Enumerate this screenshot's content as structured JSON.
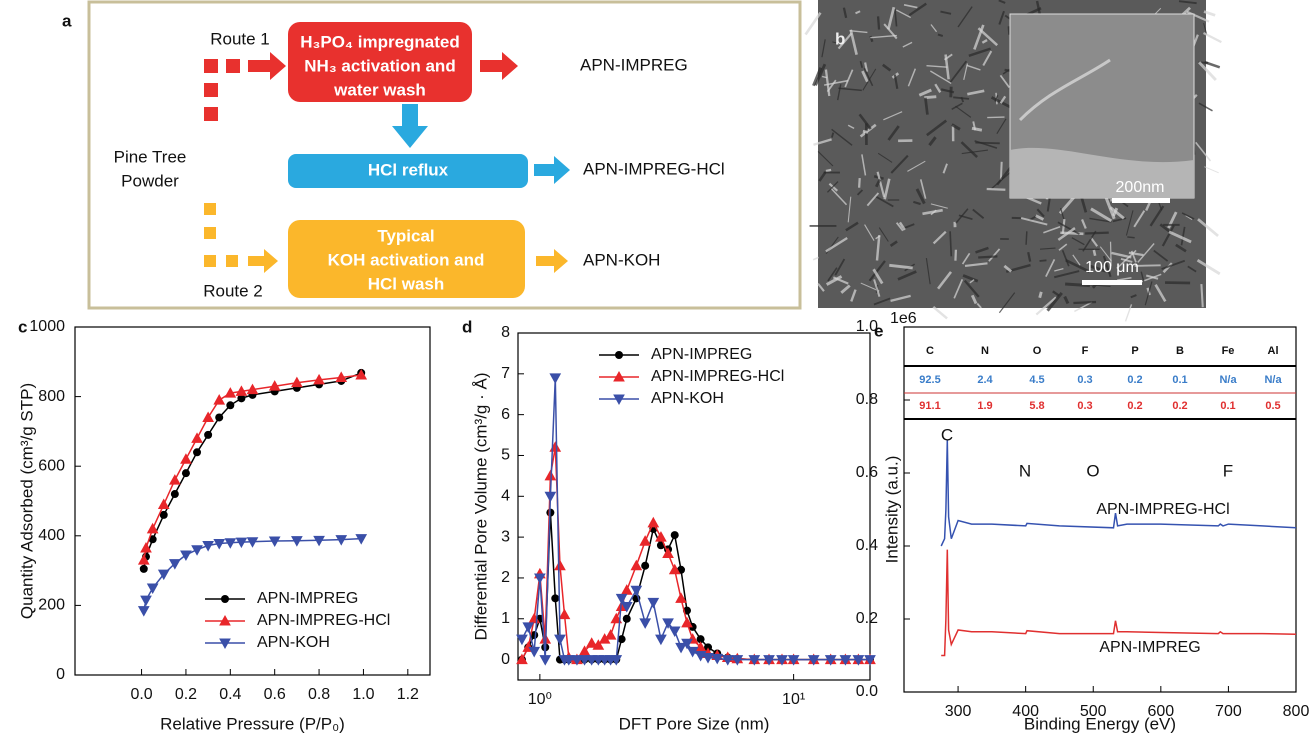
{
  "panel_labels": [
    "a",
    "b",
    "c",
    "d",
    "e"
  ],
  "diagram": {
    "route1": "Route 1",
    "route2": "Route 2",
    "source": [
      "Pine Tree",
      "Powder"
    ],
    "steps": [
      [
        "H₃PO₄ impregnated",
        "NH₃ activation and",
        "water wash"
      ],
      [
        "HCl reflux"
      ],
      [
        "Typical",
        "KOH activation and",
        "HCl wash"
      ]
    ],
    "products": [
      "APN-IMPREG",
      "APN-IMPREG-HCl",
      "APN-KOH"
    ]
  },
  "micrograph": {
    "scale_bars": [
      "200nm",
      "100 μm"
    ]
  },
  "chart_data": [
    {
      "type": "line",
      "xlabel": "Relative Pressure (P/P₀)",
      "ylabel": "Quantity Adsorbed (cm³/g STP)",
      "xlim": [
        -0.3,
        1.3
      ],
      "xticks": [
        {
          "value": 0,
          "label": "0.0"
        },
        0.2,
        0.4,
        0.6,
        0.8,
        {
          "value": 1,
          "label": "1.0"
        },
        1.2
      ],
      "ylim": [
        0,
        1000
      ],
      "yticks": [
        0,
        200,
        400,
        600,
        800,
        1000
      ],
      "legend": "lower right",
      "x": [
        0.01,
        0.02,
        0.05,
        0.1,
        0.15,
        0.2,
        0.25,
        0.3,
        0.35,
        0.4,
        0.45,
        0.5,
        0.6,
        0.7,
        0.8,
        0.9,
        0.99
      ],
      "series": [
        {
          "name": "APN-IMPREG",
          "color": "#000000",
          "marker": "circle",
          "values": [
            305,
            340,
            390,
            460,
            520,
            580,
            640,
            690,
            740,
            775,
            795,
            805,
            815,
            825,
            835,
            845,
            868
          ]
        },
        {
          "name": "APN-IMPREG-HCl",
          "color": "#e8262a",
          "marker": "triangle-up",
          "values": [
            330,
            365,
            420,
            490,
            560,
            620,
            680,
            740,
            790,
            810,
            815,
            820,
            830,
            840,
            848,
            855,
            862
          ]
        },
        {
          "name": "APN-KOH",
          "color": "#3a4fa8",
          "marker": "triangle-down",
          "values": [
            185,
            215,
            250,
            290,
            320,
            345,
            360,
            372,
            378,
            380,
            382,
            383,
            385,
            386,
            387,
            389,
            392
          ]
        }
      ]
    },
    {
      "type": "line",
      "xlabel": "DFT Pore Size (nm)",
      "ylabel": "Differential Pore Volume (cm³/g · Å)",
      "xscale": "log",
      "xlim": [
        0.82,
        20
      ],
      "xticks": [
        {
          "value": 1,
          "label": "10⁰"
        },
        {
          "value": 10,
          "label": "10¹"
        }
      ],
      "ylim": [
        -0.5,
        8
      ],
      "yticks": [
        0,
        1,
        2,
        3,
        4,
        5,
        6,
        7,
        8
      ],
      "legend": "upper center",
      "x": [
        0.85,
        0.9,
        0.95,
        1.0,
        1.05,
        1.1,
        1.15,
        1.2,
        1.25,
        1.3,
        1.4,
        1.5,
        1.6,
        1.7,
        1.8,
        1.9,
        2.0,
        2.1,
        2.2,
        2.4,
        2.6,
        2.8,
        3.0,
        3.2,
        3.4,
        3.6,
        3.8,
        4.0,
        4.3,
        4.6,
        5.0,
        5.5,
        6,
        7,
        8,
        9,
        10,
        12,
        14,
        16,
        18,
        20
      ],
      "series": [
        {
          "name": "APN-IMPREG",
          "color": "#000000",
          "marker": "circle",
          "values": [
            0,
            0.3,
            0.6,
            1.0,
            0.3,
            3.6,
            1.5,
            0,
            0,
            0,
            0,
            0,
            0,
            0,
            0,
            0,
            0,
            0.5,
            1.0,
            1.5,
            2.3,
            3.2,
            2.8,
            2.7,
            3.05,
            2.2,
            1.2,
            0.8,
            0.5,
            0.3,
            0.15,
            0.05,
            0.02,
            0,
            0,
            0,
            0,
            0,
            0,
            0,
            0,
            0
          ]
        },
        {
          "name": "APN-IMPREG-HCl",
          "color": "#e8262a",
          "marker": "triangle-up",
          "values": [
            0,
            0.3,
            1.0,
            2.1,
            0.5,
            4.5,
            5.2,
            2.3,
            1.1,
            0.05,
            0,
            0.2,
            0.4,
            0.35,
            0.5,
            0.6,
            1.0,
            1.3,
            1.7,
            2.3,
            2.9,
            3.35,
            3.0,
            2.6,
            2.2,
            1.5,
            0.9,
            0.5,
            0.3,
            0.15,
            0.1,
            0.05,
            0.02,
            0,
            0,
            0,
            0,
            0,
            0,
            0,
            0,
            0
          ]
        },
        {
          "name": "APN-KOH",
          "color": "#3a4fa8",
          "marker": "triangle-down",
          "values": [
            0.5,
            0.8,
            0.2,
            2.0,
            0,
            4.0,
            6.9,
            0.5,
            0,
            0,
            0,
            0,
            0,
            0,
            0,
            0,
            0,
            1.5,
            1.3,
            1.7,
            0.9,
            1.4,
            0.5,
            0.9,
            0.7,
            0.3,
            0.4,
            0.2,
            0.1,
            0.05,
            0.03,
            0,
            0,
            0,
            0,
            0,
            0,
            0,
            0,
            0,
            0,
            0
          ]
        }
      ]
    },
    {
      "type": "line",
      "xlabel": "Binding Energy (eV)",
      "ylabel": "Intensity (a.u.)",
      "offset_label": "1e6",
      "xlim": [
        220,
        800
      ],
      "xticks": [
        300,
        400,
        500,
        600,
        700,
        800
      ],
      "ylim": [
        0,
        1
      ],
      "yticks": [
        {
          "value": 0,
          "label": "0.0"
        },
        0.2,
        0.4,
        0.6,
        0.8,
        {
          "value": 1,
          "label": "1.0"
        }
      ],
      "legend": "inline",
      "annotations": [
        "C",
        "N",
        "O",
        "F"
      ],
      "x": [
        275,
        280,
        282,
        284,
        286,
        290,
        300,
        320,
        350,
        400,
        402,
        450,
        530,
        533,
        536,
        550,
        600,
        685,
        688,
        692,
        700,
        750,
        800
      ],
      "series": [
        {
          "name": "APN-IMPREG-HCl",
          "color": "#3552b0",
          "values": [
            0.4,
            0.42,
            0.5,
            0.69,
            0.48,
            0.42,
            0.47,
            0.46,
            0.46,
            0.455,
            0.462,
            0.455,
            0.45,
            0.49,
            0.455,
            0.46,
            0.46,
            0.455,
            0.46,
            0.455,
            0.46,
            0.455,
            0.45
          ]
        },
        {
          "name": "APN-IMPREG",
          "color": "#e03030",
          "values": [
            0.1,
            0.1,
            0.2,
            0.39,
            0.17,
            0.13,
            0.17,
            0.165,
            0.165,
            0.16,
            0.168,
            0.16,
            0.16,
            0.195,
            0.165,
            0.165,
            0.163,
            0.16,
            0.165,
            0.16,
            0.16,
            0.16,
            0.158
          ]
        }
      ],
      "table": {
        "header": [
          "C",
          "N",
          "O",
          "F",
          "P",
          "B",
          "Fe",
          "Al"
        ],
        "rows": [
          [
            92.5,
            2.4,
            4.5,
            0.3,
            0.2,
            0.1,
            "N/a",
            "N/a"
          ],
          [
            91.1,
            1.9,
            5.8,
            0.3,
            0.2,
            0.2,
            0.1,
            0.5
          ]
        ],
        "row_colors": [
          "#3a7dc9",
          "#e03030"
        ]
      }
    }
  ]
}
